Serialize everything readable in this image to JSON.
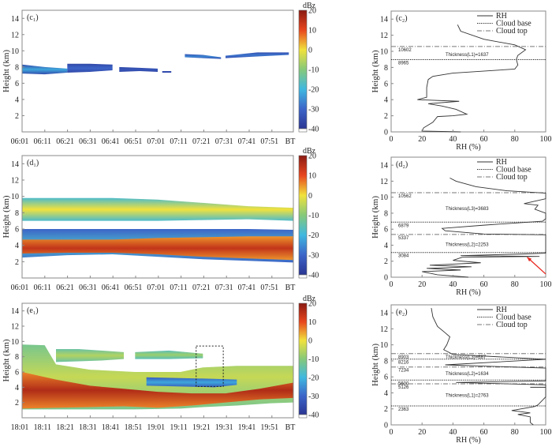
{
  "colorbar": {
    "unit": "dBz",
    "ticks": [
      20,
      10,
      0,
      -10,
      -20,
      -30,
      -40
    ],
    "range": [
      -40,
      20
    ],
    "colors": [
      "#2a3592",
      "#3c64c8",
      "#3fb8e0",
      "#86c97a",
      "#f1e23c",
      "#e8461e",
      "#8a1a12"
    ]
  },
  "chart_data": [
    {
      "type": "heatmap",
      "panel_label": "(c₁)",
      "ylabel": "Height (km)",
      "ylim": [
        0,
        15
      ],
      "yticks": [
        2,
        4,
        6,
        8,
        10,
        12,
        14
      ],
      "xlim_minutes": [
        0,
        120
      ],
      "xticks": [
        "06:01",
        "06:11",
        "06:21",
        "06:31",
        "06:41",
        "06:51",
        "07:01",
        "07:11",
        "07:21",
        "07:31",
        "07:41",
        "07:51",
        "BT"
      ],
      "layers": [
        {
          "x": [
            0,
            10,
            20
          ],
          "bottom": [
            7.2,
            7.1,
            7.3
          ],
          "top": [
            8.3,
            8.0,
            7.8
          ],
          "edge": -35,
          "core": -22
        },
        {
          "x": [
            20,
            30,
            40
          ],
          "bottom": [
            7.3,
            7.4,
            7.6
          ],
          "top": [
            8.4,
            8.4,
            8.3
          ],
          "edge": -36,
          "core": -30
        },
        {
          "x": [
            43,
            52,
            60
          ],
          "bottom": [
            7.4,
            7.5,
            7.4
          ],
          "top": [
            8.0,
            7.9,
            7.8
          ],
          "edge": -36,
          "core": -33
        },
        {
          "x": [
            62,
            66
          ],
          "bottom": [
            7.3,
            7.3
          ],
          "top": [
            7.5,
            7.5
          ],
          "edge": -36,
          "core": -34
        },
        {
          "x": [
            72,
            80,
            88
          ],
          "bottom": [
            9.2,
            9.1,
            9.0
          ],
          "top": [
            9.6,
            9.5,
            9.2
          ],
          "edge": -34,
          "core": -26
        },
        {
          "x": [
            90,
            104,
            118
          ],
          "bottom": [
            9.1,
            9.3,
            9.5
          ],
          "top": [
            9.4,
            9.8,
            9.8
          ],
          "edge": -34,
          "core": -28
        }
      ]
    },
    {
      "type": "heatmap",
      "panel_label": "(d₁)",
      "ylabel": "Height (km)",
      "ylim": [
        0,
        15
      ],
      "yticks": [
        2,
        4,
        6,
        8,
        10,
        12,
        14
      ],
      "xlim_minutes": [
        0,
        120
      ],
      "xticks": [
        "06:01",
        "06:11",
        "06:21",
        "06:31",
        "06:41",
        "06:51",
        "07:01",
        "07:11",
        "07:21",
        "07:31",
        "07:41",
        "07:51",
        "BT"
      ],
      "layers": [
        {
          "x": [
            0,
            20,
            40,
            60,
            80,
            100,
            120
          ],
          "bottom": [
            7.0,
            7.0,
            7.0,
            7.0,
            7.1,
            7.2,
            7.0
          ],
          "top": [
            9.8,
            9.8,
            9.8,
            9.6,
            9.2,
            8.8,
            8.6
          ],
          "edge": -18,
          "core": 0
        },
        {
          "x": [
            0,
            20,
            40,
            60,
            80,
            100,
            120
          ],
          "bottom": [
            2.5,
            2.8,
            2.9,
            2.6,
            2.3,
            2.1,
            1.9
          ],
          "top": [
            6.0,
            6.0,
            6.0,
            6.0,
            6.0,
            6.0,
            5.9
          ],
          "edge": -30,
          "core": -18
        },
        {
          "x": [
            0,
            20,
            40,
            60,
            80,
            100,
            120
          ],
          "bottom": [
            3.0,
            3.1,
            3.1,
            2.9,
            2.6,
            2.4,
            2.2
          ],
          "top": [
            4.7,
            4.7,
            4.7,
            4.9,
            5.0,
            5.1,
            5.1
          ],
          "edge": 5,
          "core": 14
        }
      ]
    },
    {
      "type": "heatmap",
      "panel_label": "(e₁)",
      "ylabel": "Height (km)",
      "ylim": [
        0,
        15
      ],
      "yticks": [
        2,
        4,
        6,
        8,
        10,
        12,
        14
      ],
      "xlim_minutes": [
        0,
        120
      ],
      "xticks": [
        "18:01",
        "18:11",
        "18:21",
        "18:31",
        "18:41",
        "18:51",
        "19:01",
        "19:11",
        "19:21",
        "19:31",
        "19:41",
        "19:51",
        "BT"
      ],
      "layers": [
        {
          "x": [
            0,
            10,
            15,
            30,
            50,
            70,
            80,
            95,
            110,
            120
          ],
          "bottom": [
            1.1,
            1.1,
            1.1,
            1.1,
            1.1,
            1.2,
            1.4,
            1.6,
            1.9,
            2.0
          ],
          "top": [
            9.6,
            9.5,
            7.0,
            6.3,
            6.0,
            6.0,
            6.6,
            6.8,
            6.8,
            6.8
          ],
          "edge": -12,
          "core": -4
        },
        {
          "x": [
            15,
            25,
            35,
            45
          ],
          "bottom": [
            7.3,
            7.4,
            7.5,
            7.7
          ],
          "top": [
            9.0,
            9.0,
            8.8,
            8.6
          ],
          "edge": -14,
          "core": -6
        },
        {
          "x": [
            50,
            65,
            80
          ],
          "bottom": [
            7.7,
            7.7,
            7.8
          ],
          "top": [
            8.6,
            8.8,
            8.4
          ],
          "edge": -16,
          "core": -8
        },
        {
          "x": [
            55,
            70,
            85,
            95
          ],
          "bottom": [
            4.2,
            4.1,
            4.0,
            4.3
          ],
          "top": [
            5.3,
            5.2,
            5.1,
            5.0
          ],
          "edge": -32,
          "core": -22
        },
        {
          "x": [
            0,
            15,
            30,
            45,
            60,
            75,
            90,
            105,
            120
          ],
          "bottom": [
            1.2,
            1.3,
            1.4,
            1.5,
            1.3,
            1.6,
            2.0,
            2.4,
            2.6
          ],
          "top": [
            6.0,
            5.0,
            4.2,
            3.8,
            3.4,
            3.2,
            3.2,
            3.8,
            4.6
          ],
          "edge": 6,
          "core": 16
        }
      ],
      "box": {
        "x": [
          77,
          89
        ],
        "y": [
          4.1,
          9.4
        ]
      }
    },
    {
      "type": "line",
      "panel_label": "(c₂)",
      "xlabel": "RH (%)",
      "ylabel": "Height (km)",
      "xlim": [
        0,
        100
      ],
      "ylim": [
        0,
        15
      ],
      "xticks": [
        0,
        20,
        40,
        60,
        80,
        100
      ],
      "yticks": [
        0,
        2,
        4,
        6,
        8,
        10,
        12,
        14
      ],
      "legend": [
        "RH",
        "Cloud base",
        "Cloud top"
      ],
      "legend_placement": "top-right",
      "rh": [
        [
          45,
          0
        ],
        [
          20,
          0.1
        ],
        [
          21,
          0.5
        ],
        [
          27,
          1.2
        ],
        [
          30,
          1.9
        ],
        [
          40,
          2.0
        ],
        [
          49,
          2.2
        ],
        [
          42,
          2.8
        ],
        [
          33,
          3.2
        ],
        [
          24,
          3.5
        ],
        [
          44,
          3.8
        ],
        [
          17,
          4.0
        ],
        [
          23,
          4.3
        ],
        [
          23,
          5.5
        ],
        [
          24,
          6.5
        ],
        [
          27,
          6.9
        ],
        [
          40,
          7.3
        ],
        [
          80,
          7.8
        ],
        [
          82,
          8.3
        ],
        [
          81,
          9.0
        ],
        [
          82,
          9.5
        ],
        [
          87,
          10.2
        ],
        [
          80,
          10.8
        ],
        [
          60,
          11.5
        ],
        [
          45,
          12.5
        ],
        [
          43,
          13.3
        ]
      ],
      "cloud_base_m": [
        8965
      ],
      "cloud_top_m": [
        10602
      ],
      "level_labels": [
        "10602",
        "8965"
      ],
      "thickness": [
        {
          "label": "Thickness(L1)=1637",
          "height": 9.6
        }
      ]
    },
    {
      "type": "line",
      "panel_label": "(d₂)",
      "xlabel": "RH (%)",
      "ylabel": "Height (km)",
      "xlim": [
        0,
        100
      ],
      "ylim": [
        0,
        15
      ],
      "xticks": [
        0,
        20,
        40,
        60,
        80,
        100
      ],
      "yticks": [
        0,
        2,
        4,
        6,
        8,
        10,
        12,
        14
      ],
      "legend": [
        "RH",
        "Cloud base",
        "Cloud top"
      ],
      "legend_placement": "top-right",
      "rh": [
        [
          50,
          0
        ],
        [
          30,
          0.3
        ],
        [
          20,
          0.7
        ],
        [
          45,
          0.9
        ],
        [
          23,
          1.1
        ],
        [
          52,
          1.3
        ],
        [
          25,
          1.5
        ],
        [
          58,
          1.8
        ],
        [
          40,
          2.1
        ],
        [
          46,
          2.5
        ],
        [
          96,
          2.6
        ],
        [
          45,
          2.7
        ],
        [
          85,
          2.9
        ],
        [
          100,
          3.0
        ],
        [
          100,
          3.8
        ],
        [
          100,
          5.3
        ],
        [
          60,
          5.4
        ],
        [
          35,
          5.8
        ],
        [
          33,
          6.1
        ],
        [
          60,
          6.5
        ],
        [
          98,
          7.0
        ],
        [
          100,
          7.3
        ],
        [
          100,
          8.0
        ],
        [
          93,
          8.5
        ],
        [
          95,
          9.0
        ],
        [
          86,
          9.2
        ],
        [
          100,
          9.8
        ],
        [
          100,
          10.5
        ],
        [
          75,
          10.8
        ],
        [
          55,
          11.3
        ],
        [
          42,
          12
        ],
        [
          38,
          12.4
        ]
      ],
      "cloud_base_m": [
        3084,
        6879
      ],
      "cloud_top_m": [
        5337,
        10562
      ],
      "level_labels": [
        "10562",
        "6879",
        "5337",
        "3084"
      ],
      "thickness": [
        {
          "label": "Thickness(L3)=3683",
          "height": 8.6
        },
        {
          "label": "Thickness(L2)=2253",
          "height": 4.1
        }
      ],
      "arrow": {
        "color": "#e8261e",
        "from": [
          100,
          0.4
        ],
        "to": [
          88,
          2.5
        ]
      }
    },
    {
      "type": "line",
      "panel_label": "(e₂)",
      "xlabel": "RH (%)",
      "ylabel": "Height (km)",
      "xlim": [
        0,
        100
      ],
      "ylim": [
        0,
        15
      ],
      "xticks": [
        0,
        20,
        40,
        60,
        80,
        100
      ],
      "yticks": [
        0,
        2,
        4,
        6,
        8,
        10,
        12,
        14
      ],
      "legend": [
        "RH",
        "Cloud base",
        "Cloud top"
      ],
      "legend_placement": "top-right",
      "rh": [
        [
          92,
          0
        ],
        [
          90,
          0.3
        ],
        [
          90,
          1.0
        ],
        [
          82,
          1.3
        ],
        [
          90,
          1.5
        ],
        [
          78,
          1.8
        ],
        [
          93,
          2.3
        ],
        [
          95,
          2.5
        ],
        [
          100,
          3.5
        ],
        [
          100,
          3.8
        ],
        [
          100,
          4.7
        ],
        [
          90,
          4.7
        ],
        [
          100,
          4.7
        ],
        [
          100,
          5.0
        ],
        [
          42,
          5.3
        ],
        [
          100,
          5.5
        ],
        [
          100,
          7.1
        ],
        [
          35,
          7.5
        ],
        [
          100,
          8.2
        ],
        [
          40,
          8.8
        ],
        [
          34,
          9.4
        ],
        [
          36,
          10
        ],
        [
          38,
          11
        ],
        [
          35,
          11.5
        ],
        [
          30,
          12.3
        ],
        [
          27,
          13.5
        ],
        [
          26,
          14.6
        ]
      ],
      "cloud_base_m": [
        2363,
        5600,
        8216
      ],
      "cloud_top_m": [
        5126,
        7234,
        8903
      ],
      "level_labels": [
        "8903",
        "8216",
        "7234",
        "5600",
        "5126",
        "2363"
      ],
      "thickness": [
        {
          "label": "Thickness(L3)=687",
          "height": 8.5
        },
        {
          "label": "Thickness(L2)=1634",
          "height": 6.4
        },
        {
          "label": "Thickness(L1)=2763",
          "height": 3.7
        }
      ]
    }
  ]
}
